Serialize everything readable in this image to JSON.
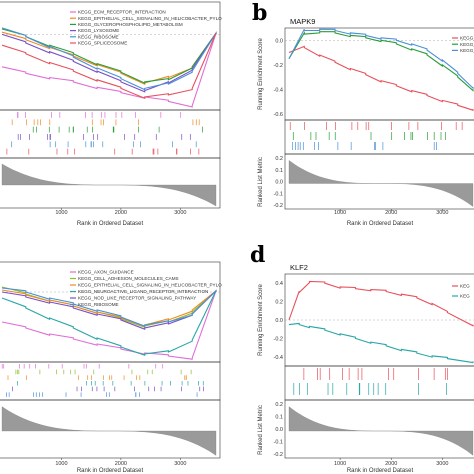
{
  "panels": {
    "a": {
      "label": "",
      "title": "",
      "xlabel": "Rank in Ordered Dataset",
      "xticks": [
        "1000",
        "2000",
        "3000"
      ],
      "ylabel_es": "",
      "ylabel_metric": ""
    },
    "b": {
      "label": "b",
      "title": "MAPK9",
      "xlabel": "Rank in Ordered Dataset",
      "xticks": [
        "1000",
        "2000",
        "3000"
      ],
      "ylabel_es": "Running Enrichment Score",
      "ylabel_metric": "Ranked List Metric",
      "es_ticks": [
        "0.0",
        "-0.2",
        "-0.4",
        "-0.6"
      ],
      "metric_ticks": [
        "0.2",
        "0.1",
        "0.0",
        "-0.1",
        "-0.2"
      ]
    },
    "c": {
      "label": "",
      "title": "",
      "xlabel": "Rank in Ordered Dataset",
      "xticks": [
        "1000",
        "2000",
        "3000"
      ],
      "ylabel_es": "",
      "ylabel_metric": ""
    },
    "d": {
      "label": "d",
      "title": "KLF2",
      "xlabel": "Rank in Ordered Dataset",
      "xticks": [
        "1000",
        "2000",
        "3000"
      ],
      "ylabel_es": "Running Enrichment Score",
      "ylabel_metric": "Ranked List Metric",
      "es_ticks": [
        "0.4",
        "0.2",
        "0.0",
        "-0.2",
        "-0.4"
      ],
      "metric_ticks": [
        "0.2",
        "0.1",
        "0.0",
        "-0.1",
        "-0.2"
      ]
    }
  },
  "chart_data": [
    {
      "type": "line",
      "panel": "a",
      "xlabel": "Rank in Ordered Dataset",
      "xlim": [
        0,
        3600
      ],
      "ylim": [
        -0.7,
        0.3
      ],
      "legend_position": "top-right",
      "series": [
        {
          "name": "KEGG_ECM_RECEPTOR_INTERACTION",
          "color": "#e06fd6",
          "x": [
            0,
            400,
            800,
            1200,
            1600,
            2000,
            2400,
            2800,
            3200,
            3600
          ],
          "y": [
            -0.3,
            -0.36,
            -0.4,
            -0.44,
            -0.49,
            -0.54,
            -0.58,
            -0.62,
            -0.66,
            0.0
          ]
        },
        {
          "name": "KEGG_EPITHELIAL_CELL_SIGNALING_IN_HELICOBACTER_PYLO",
          "color": "#f08a24",
          "x": [
            0,
            400,
            800,
            1200,
            1600,
            2000,
            2400,
            2800,
            3200,
            3600
          ],
          "y": [
            0.02,
            -0.05,
            -0.12,
            -0.2,
            -0.28,
            -0.36,
            -0.45,
            -0.4,
            -0.3,
            0.0
          ]
        },
        {
          "name": "KEGG_GLYCEROPHOSPHOLIPID_METABOLISM",
          "color": "#2a9d3a",
          "x": [
            0,
            400,
            800,
            1200,
            1600,
            2000,
            2400,
            2800,
            3200,
            3600
          ],
          "y": [
            0.05,
            -0.02,
            -0.1,
            -0.18,
            -0.27,
            -0.35,
            -0.44,
            -0.42,
            -0.3,
            0.0
          ]
        },
        {
          "name": "KEGG_LYSOSOME",
          "color": "#7b4fc8",
          "x": [
            0,
            400,
            800,
            1200,
            1600,
            2000,
            2400,
            2800,
            3200,
            3600
          ],
          "y": [
            0.0,
            -0.08,
            -0.16,
            -0.25,
            -0.34,
            -0.44,
            -0.52,
            -0.45,
            -0.32,
            0.0
          ]
        },
        {
          "name": "KEGG_RIBOSOME",
          "color": "#4a90d9",
          "x": [
            0,
            400,
            800,
            1200,
            1600,
            2000,
            2400,
            2800,
            3200,
            3600
          ],
          "y": [
            0.06,
            -0.02,
            -0.11,
            -0.21,
            -0.31,
            -0.41,
            -0.5,
            -0.46,
            -0.34,
            0.0
          ]
        },
        {
          "name": "KEGG_SPLICEOSOME",
          "color": "#e8505b",
          "x": [
            0,
            400,
            800,
            1200,
            1600,
            2000,
            2400,
            2800,
            3200,
            3600
          ],
          "y": [
            -0.1,
            -0.18,
            -0.26,
            -0.34,
            -0.42,
            -0.5,
            -0.58,
            -0.56,
            -0.5,
            0.0
          ]
        }
      ]
    },
    {
      "type": "line",
      "panel": "b",
      "title": "MAPK9",
      "xlabel": "Rank in Ordered Dataset",
      "ylabel": "Running Enrichment Score",
      "xlim": [
        0,
        3600
      ],
      "ylim": [
        -0.65,
        0.1
      ],
      "legend_position": "top-right",
      "series": [
        {
          "name": "KEGG_E",
          "color": "#e8505b",
          "x": [
            0,
            300,
            600,
            900,
            1200,
            1500,
            1800,
            2100,
            2400,
            2700,
            3000,
            3300,
            3600
          ],
          "y": [
            -0.1,
            -0.06,
            -0.12,
            -0.18,
            -0.23,
            -0.28,
            -0.33,
            -0.37,
            -0.41,
            -0.45,
            -0.49,
            -0.53,
            -0.56
          ]
        },
        {
          "name": "KEGG_E",
          "color": "#2a9d3a",
          "x": [
            0,
            300,
            600,
            900,
            1200,
            1500,
            1800,
            2100,
            2400,
            2700,
            3000,
            3300,
            3600
          ],
          "y": [
            -0.15,
            0.05,
            0.07,
            0.06,
            0.04,
            0.02,
            0.0,
            -0.03,
            -0.07,
            -0.12,
            -0.2,
            -0.3,
            -0.4
          ]
        },
        {
          "name": "KEGG_E",
          "color": "#4a90d9",
          "x": [
            0,
            300,
            600,
            900,
            1200,
            1500,
            1800,
            2100,
            2400,
            2700,
            3000,
            3300,
            3600
          ],
          "y": [
            -0.15,
            0.08,
            0.09,
            0.08,
            0.06,
            0.04,
            0.02,
            0.0,
            -0.03,
            -0.08,
            -0.16,
            -0.27,
            -0.38
          ]
        }
      ]
    },
    {
      "type": "line",
      "panel": "c",
      "xlabel": "Rank in Ordered Dataset",
      "xlim": [
        0,
        3600
      ],
      "ylim": [
        -0.7,
        0.3
      ],
      "legend_position": "top-right",
      "series": [
        {
          "name": "KEGG_AXON_GUIDANCE",
          "color": "#e06fd6",
          "x": [
            0,
            400,
            800,
            1200,
            1600,
            2000,
            2400,
            2800,
            3200,
            3600
          ],
          "y": [
            -0.3,
            -0.36,
            -0.42,
            -0.47,
            -0.52,
            -0.57,
            -0.61,
            -0.64,
            -0.66,
            0.0
          ]
        },
        {
          "name": "KEGG_CELL_ADHESION_MOLECULES_CAMS",
          "color": "#8fbf30",
          "x": [
            0,
            400,
            800,
            1200,
            1600,
            2000,
            2400,
            2800,
            3200,
            3600
          ],
          "y": [
            0.05,
            -0.02,
            -0.08,
            -0.14,
            -0.2,
            -0.27,
            -0.34,
            -0.3,
            -0.2,
            0.0
          ]
        },
        {
          "name": "KEGG_EPITHELIAL_CELL_SIGNALING_IN_HELICOBACTER_PYLO",
          "color": "#f08a24",
          "x": [
            0,
            400,
            800,
            1200,
            1600,
            2000,
            2400,
            2800,
            3200,
            3600
          ],
          "y": [
            0.02,
            -0.03,
            -0.08,
            -0.14,
            -0.2,
            -0.26,
            -0.33,
            -0.28,
            -0.18,
            0.0
          ]
        },
        {
          "name": "KEGG_NEUROACTIVE_LIGAND_RECEPTOR_INTERACTION",
          "color": "#2aa6a6",
          "x": [
            0,
            400,
            800,
            1200,
            1600,
            2000,
            2400,
            2800,
            3200,
            3600
          ],
          "y": [
            -0.06,
            -0.16,
            -0.26,
            -0.36,
            -0.46,
            -0.55,
            -0.62,
            -0.6,
            -0.48,
            0.0
          ]
        },
        {
          "name": "KEGG_NOD_LIKE_RECEPTOR_SIGNALING_PATHWAY",
          "color": "#7b4fc8",
          "x": [
            0,
            400,
            800,
            1200,
            1600,
            2000,
            2400,
            2800,
            3200,
            3600
          ],
          "y": [
            0.0,
            -0.05,
            -0.1,
            -0.16,
            -0.22,
            -0.28,
            -0.36,
            -0.32,
            -0.22,
            0.0
          ]
        },
        {
          "name": "KEGG_RIBOSOME",
          "color": "#4a90d9",
          "x": [
            0,
            400,
            800,
            1200,
            1600,
            2000,
            2400,
            2800,
            3200,
            3600
          ],
          "y": [
            0.04,
            0.0,
            -0.06,
            -0.12,
            -0.18,
            -0.25,
            -0.33,
            -0.3,
            -0.22,
            0.0
          ]
        }
      ]
    },
    {
      "type": "line",
      "panel": "d",
      "title": "KLF2",
      "xlabel": "Rank in Ordered Dataset",
      "ylabel": "Running Enrichment Score",
      "xlim": [
        0,
        3600
      ],
      "ylim": [
        -0.5,
        0.5
      ],
      "legend_position": "top-right",
      "series": [
        {
          "name": "KEG",
          "color": "#e8505b",
          "x": [
            0,
            200,
            400,
            700,
            1000,
            1300,
            1600,
            1900,
            2200,
            2500,
            2800,
            3100,
            3600
          ],
          "y": [
            0.0,
            0.3,
            0.42,
            0.4,
            0.36,
            0.34,
            0.33,
            0.31,
            0.28,
            0.24,
            0.18,
            0.08,
            -0.05
          ]
        },
        {
          "name": "KEG",
          "color": "#2aa6a6",
          "x": [
            0,
            200,
            400,
            700,
            1000,
            1300,
            1600,
            1900,
            2200,
            2500,
            2800,
            3100,
            3600
          ],
          "y": [
            -0.05,
            -0.05,
            -0.07,
            -0.11,
            -0.15,
            -0.2,
            -0.24,
            -0.28,
            -0.32,
            -0.36,
            -0.39,
            -0.42,
            -0.45
          ]
        }
      ]
    }
  ]
}
